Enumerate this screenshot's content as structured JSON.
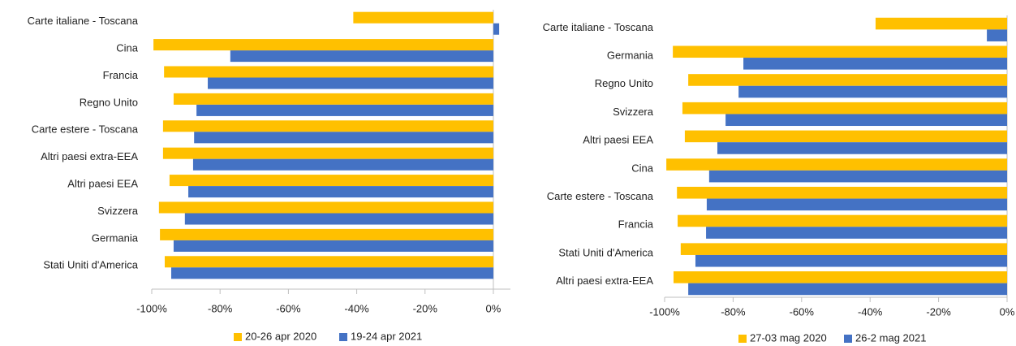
{
  "chart_data": [
    {
      "type": "bar",
      "orientation": "horizontal",
      "categories": [
        "Carte italiane - Toscana",
        "Cina",
        "Francia",
        "Regno Unito",
        "Carte estere - Toscana",
        "Altri paesi extra-EEA",
        "Altri paesi EEA",
        "Svizzera",
        "Germania",
        "Stati Uniti d'America"
      ],
      "series": [
        {
          "name": "20-26 apr 2020",
          "color": "#FFC000",
          "values": [
            -41,
            -99.5,
            -96.4,
            -93.6,
            -96.7,
            -96.7,
            -94.8,
            -97.9,
            -97.6,
            -96.2
          ]
        },
        {
          "name": "19-24 apr 2021",
          "color": "#4472C4",
          "values": [
            1.7,
            -77,
            -83.6,
            -86.9,
            -87.6,
            -87.9,
            -89.3,
            -90.3,
            -93.6,
            -94.3
          ]
        }
      ],
      "xlim": [
        -100,
        5
      ],
      "xticks": [
        {
          "value": -100,
          "label": "-100%"
        },
        {
          "value": -80,
          "label": "-80%"
        },
        {
          "value": -60,
          "label": "-60%"
        },
        {
          "value": -40,
          "label": "-40%"
        },
        {
          "value": -20,
          "label": "-20%"
        },
        {
          "value": 0,
          "label": "0%"
        }
      ]
    },
    {
      "type": "bar",
      "orientation": "horizontal",
      "categories": [
        "Carte italiane - Toscana",
        "Germania",
        "Regno Unito",
        "Svizzera",
        "Altri paesi EEA",
        "Cina",
        "Carte estere - Toscana",
        "Francia",
        "Stati Uniti d'America",
        "Altri paesi extra-EEA"
      ],
      "series": [
        {
          "name": "27-03 mag 2020",
          "color": "#FFC000",
          "values": [
            -38.4,
            -97.6,
            -93.1,
            -94.8,
            -94.1,
            -99.5,
            -96.4,
            -96.2,
            -95.3,
            -97.4
          ]
        },
        {
          "name": "26-2 mag 2021",
          "color": "#4472C4",
          "values": [
            -5.9,
            -77,
            -78.4,
            -82.2,
            -84.6,
            -87,
            -87.7,
            -87.9,
            -91,
            -93.1
          ]
        }
      ],
      "xlim": [
        -100,
        0
      ],
      "xticks": [
        {
          "value": -100,
          "label": "-100%"
        },
        {
          "value": -80,
          "label": "-80%"
        },
        {
          "value": -60,
          "label": "-60%"
        },
        {
          "value": -40,
          "label": "-40%"
        },
        {
          "value": -20,
          "label": "-20%"
        },
        {
          "value": 0,
          "label": "0%"
        }
      ]
    }
  ]
}
